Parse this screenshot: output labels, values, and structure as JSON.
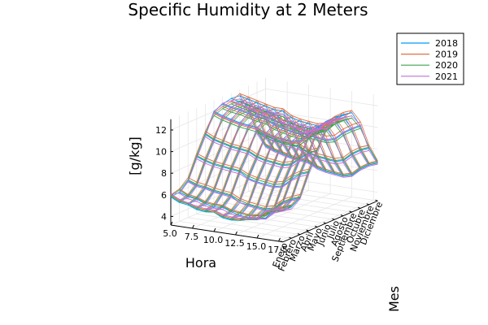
{
  "chart_data": {
    "type": "line",
    "title": "Specific Humidity at 2 Meters",
    "xlabel": "Hora",
    "ylabel": "Mes",
    "zlabel": "[g/kg]",
    "x_ticks": [
      "5.0",
      "7.5",
      "10.0",
      "12.5",
      "15.0",
      "17.5"
    ],
    "x_range": [
      5,
      18
    ],
    "y_ticks": [
      "Enero",
      "Febrero",
      "Marzo",
      "Abril",
      "Mayo",
      "Junio",
      "Julio",
      "Agosto",
      "Septiembre",
      "Octubre",
      "Noviembre",
      "Diciembre"
    ],
    "z_ticks": [
      "4",
      "6",
      "8",
      "10",
      "12"
    ],
    "z_range": [
      3.2,
      13.0
    ],
    "grid": true,
    "legend_position": "top-right",
    "hours": [
      5,
      6,
      7,
      8,
      9,
      10,
      11,
      12,
      13,
      14,
      15,
      16,
      17,
      18
    ],
    "series": [
      {
        "name": "2018",
        "color": "#009AFA",
        "values": [
          [
            5.8,
            5.4,
            5.3,
            5.0,
            4.9,
            5.0,
            4.6,
            4.5,
            4.6,
            4.8,
            4.9,
            5.6,
            5.9,
            6.1
          ],
          [
            5.9,
            5.6,
            5.5,
            5.2,
            5.0,
            5.1,
            4.8,
            4.6,
            4.5,
            4.6,
            4.7,
            5.4,
            5.7,
            6.1
          ],
          [
            6.6,
            6.3,
            6.2,
            6.0,
            5.9,
            5.8,
            5.3,
            5.2,
            5.1,
            5.0,
            5.2,
            5.9,
            6.3,
            6.6
          ],
          [
            8.5,
            8.2,
            8.0,
            7.9,
            7.8,
            7.7,
            7.2,
            7.0,
            6.9,
            6.8,
            7.0,
            7.7,
            8.3,
            8.6
          ],
          [
            10.2,
            9.8,
            9.6,
            9.4,
            9.3,
            9.2,
            8.8,
            8.6,
            8.5,
            8.4,
            8.6,
            9.3,
            9.9,
            10.3
          ],
          [
            12.0,
            11.7,
            11.5,
            11.3,
            11.2,
            11.1,
            10.7,
            10.5,
            10.4,
            10.3,
            10.5,
            11.2,
            11.8,
            12.1
          ],
          [
            12.3,
            12.1,
            12.0,
            11.8,
            11.6,
            11.5,
            11.1,
            10.9,
            10.7,
            10.6,
            10.8,
            11.5,
            12.0,
            12.4
          ],
          [
            12.5,
            12.3,
            12.1,
            12.0,
            11.8,
            11.7,
            11.2,
            11.0,
            10.9,
            10.8,
            11.0,
            11.7,
            12.2,
            12.5
          ],
          [
            12.4,
            12.2,
            12.0,
            11.8,
            11.6,
            11.6,
            11.1,
            10.9,
            10.8,
            10.7,
            10.9,
            11.6,
            12.1,
            12.4
          ],
          [
            10.8,
            10.5,
            10.3,
            10.1,
            9.9,
            9.8,
            9.4,
            9.2,
            9.1,
            9.0,
            9.2,
            9.9,
            10.4,
            10.8
          ],
          [
            8.4,
            8.1,
            7.9,
            7.7,
            7.6,
            7.5,
            7.1,
            6.9,
            6.8,
            6.7,
            6.9,
            7.6,
            8.1,
            8.4
          ],
          [
            6.7,
            6.4,
            6.2,
            6.0,
            5.9,
            5.8,
            5.4,
            5.2,
            5.1,
            5.0,
            5.2,
            5.9,
            6.4,
            6.7
          ]
        ]
      },
      {
        "name": "2019",
        "color": "#E26F46",
        "values": [
          [
            6.0,
            5.6,
            5.4,
            5.2,
            5.1,
            5.1,
            4.8,
            4.7,
            4.7,
            4.9,
            5.0,
            5.7,
            6.0,
            6.2
          ],
          [
            6.2,
            5.8,
            5.7,
            5.4,
            5.3,
            5.3,
            5.0,
            4.9,
            4.8,
            4.9,
            5.0,
            5.7,
            6.0,
            6.3
          ],
          [
            6.9,
            6.6,
            6.5,
            6.3,
            6.2,
            6.1,
            5.7,
            5.5,
            5.4,
            5.3,
            5.5,
            6.2,
            6.6,
            6.9
          ],
          [
            8.8,
            8.5,
            8.3,
            8.2,
            8.1,
            8.0,
            7.6,
            7.4,
            7.3,
            7.2,
            7.4,
            8.1,
            8.6,
            8.9
          ],
          [
            10.5,
            10.1,
            9.9,
            9.7,
            9.6,
            9.5,
            9.1,
            8.9,
            8.8,
            8.7,
            8.9,
            9.6,
            10.2,
            10.5
          ],
          [
            11.8,
            11.5,
            11.3,
            11.1,
            11.0,
            10.9,
            10.5,
            10.3,
            10.2,
            10.1,
            10.3,
            11.0,
            11.6,
            11.9
          ],
          [
            12.1,
            11.9,
            11.8,
            11.6,
            11.4,
            11.3,
            10.9,
            10.7,
            10.5,
            10.4,
            10.6,
            11.3,
            11.8,
            12.2
          ],
          [
            12.2,
            12.0,
            11.8,
            11.7,
            11.5,
            11.4,
            10.9,
            10.7,
            10.6,
            10.5,
            10.7,
            11.4,
            11.9,
            12.2
          ],
          [
            12.6,
            12.4,
            12.2,
            12.0,
            11.8,
            11.8,
            11.3,
            11.1,
            11.0,
            10.9,
            11.1,
            11.8,
            12.3,
            12.6
          ],
          [
            11.2,
            10.9,
            10.7,
            10.5,
            10.3,
            10.2,
            9.8,
            9.6,
            9.5,
            9.4,
            9.6,
            10.3,
            10.8,
            11.2
          ],
          [
            8.7,
            8.4,
            8.2,
            8.0,
            7.9,
            7.8,
            7.4,
            7.2,
            7.1,
            7.0,
            7.2,
            7.9,
            8.4,
            8.7
          ],
          [
            6.9,
            6.6,
            6.4,
            6.2,
            6.1,
            6.0,
            5.6,
            5.4,
            5.3,
            5.2,
            5.4,
            6.1,
            6.6,
            6.9
          ]
        ]
      },
      {
        "name": "2020",
        "color": "#3EA44E",
        "values": [
          [
            5.9,
            5.5,
            5.4,
            5.1,
            5.0,
            5.0,
            4.7,
            4.6,
            4.6,
            4.8,
            4.9,
            5.6,
            5.9,
            6.1
          ],
          [
            6.1,
            5.7,
            5.6,
            5.3,
            5.2,
            5.2,
            4.9,
            4.8,
            4.7,
            4.8,
            4.9,
            5.6,
            5.9,
            6.2
          ],
          [
            6.7,
            6.4,
            6.3,
            6.1,
            6.0,
            5.9,
            5.5,
            5.3,
            5.2,
            5.1,
            5.3,
            6.0,
            6.4,
            6.7
          ],
          [
            8.6,
            8.3,
            8.1,
            8.0,
            7.9,
            7.8,
            7.4,
            7.2,
            7.1,
            7.0,
            7.2,
            7.9,
            8.4,
            8.7
          ],
          [
            10.3,
            9.9,
            9.7,
            9.5,
            9.4,
            9.3,
            8.9,
            8.7,
            8.6,
            8.5,
            8.7,
            9.4,
            10.0,
            10.3
          ],
          [
            11.6,
            11.3,
            11.1,
            10.9,
            10.8,
            10.7,
            10.3,
            10.1,
            10.0,
            9.9,
            10.1,
            10.8,
            11.4,
            11.7
          ],
          [
            11.9,
            11.7,
            11.6,
            11.4,
            11.2,
            11.1,
            10.7,
            10.5,
            10.3,
            10.2,
            10.4,
            11.1,
            11.6,
            12.0
          ],
          [
            12.0,
            11.8,
            11.6,
            11.5,
            11.3,
            11.2,
            10.7,
            10.5,
            10.4,
            10.3,
            10.5,
            11.2,
            11.7,
            12.0
          ],
          [
            11.9,
            11.7,
            11.5,
            11.3,
            11.1,
            11.1,
            10.6,
            10.4,
            10.3,
            10.2,
            10.4,
            11.1,
            11.6,
            11.9
          ],
          [
            10.6,
            10.3,
            10.1,
            9.9,
            9.7,
            9.6,
            9.2,
            9.0,
            8.9,
            8.8,
            9.0,
            9.7,
            10.2,
            10.6
          ],
          [
            8.5,
            8.2,
            8.0,
            7.8,
            7.7,
            7.6,
            7.2,
            7.0,
            6.9,
            6.8,
            7.0,
            7.7,
            8.2,
            8.5
          ],
          [
            6.8,
            6.5,
            6.3,
            6.1,
            6.0,
            5.9,
            5.5,
            5.3,
            5.2,
            5.1,
            5.3,
            6.0,
            6.5,
            6.8
          ]
        ]
      },
      {
        "name": "2021",
        "color": "#C271D2",
        "values": [
          [
            6.1,
            5.7,
            5.5,
            5.3,
            5.2,
            5.2,
            4.9,
            4.8,
            4.8,
            5.0,
            5.1,
            5.8,
            6.1,
            6.3
          ],
          [
            5.8,
            5.4,
            5.3,
            5.0,
            4.9,
            4.9,
            4.6,
            4.5,
            4.4,
            4.5,
            4.6,
            5.3,
            5.6,
            5.9
          ],
          [
            6.5,
            6.2,
            6.1,
            5.9,
            5.8,
            5.7,
            5.3,
            5.1,
            5.0,
            4.9,
            5.1,
            5.8,
            6.2,
            6.5
          ],
          [
            8.3,
            8.0,
            7.8,
            7.7,
            7.6,
            7.5,
            7.1,
            6.9,
            6.8,
            6.7,
            6.9,
            7.6,
            8.1,
            8.4
          ],
          [
            10.0,
            9.6,
            9.4,
            9.2,
            9.1,
            9.0,
            8.6,
            8.4,
            8.3,
            8.2,
            8.4,
            9.1,
            9.7,
            10.0
          ],
          [
            11.9,
            11.6,
            11.4,
            11.2,
            11.1,
            11.0,
            10.6,
            10.4,
            10.3,
            10.2,
            10.4,
            11.1,
            11.7,
            12.0
          ],
          [
            12.4,
            12.2,
            12.1,
            11.9,
            11.7,
            11.6,
            11.2,
            11.0,
            10.8,
            10.7,
            10.9,
            11.6,
            12.1,
            12.5
          ],
          [
            12.3,
            12.1,
            11.9,
            11.8,
            11.6,
            11.5,
            11.0,
            10.8,
            10.7,
            10.6,
            10.8,
            11.5,
            12.0,
            12.3
          ],
          [
            12.1,
            11.9,
            11.7,
            11.5,
            11.3,
            11.3,
            10.8,
            10.6,
            10.5,
            10.4,
            10.6,
            11.3,
            11.8,
            12.1
          ],
          [
            10.9,
            10.6,
            10.4,
            10.2,
            10.0,
            9.9,
            9.5,
            9.3,
            9.2,
            9.1,
            9.3,
            10.0,
            10.5,
            10.9
          ],
          [
            8.2,
            7.9,
            7.7,
            7.5,
            7.4,
            7.3,
            6.9,
            6.7,
            6.6,
            6.5,
            6.7,
            7.4,
            7.9,
            8.2
          ],
          [
            6.6,
            6.3,
            6.1,
            5.9,
            5.8,
            5.7,
            5.3,
            5.1,
            5.0,
            4.9,
            5.1,
            5.8,
            6.3,
            6.6
          ]
        ]
      }
    ]
  }
}
